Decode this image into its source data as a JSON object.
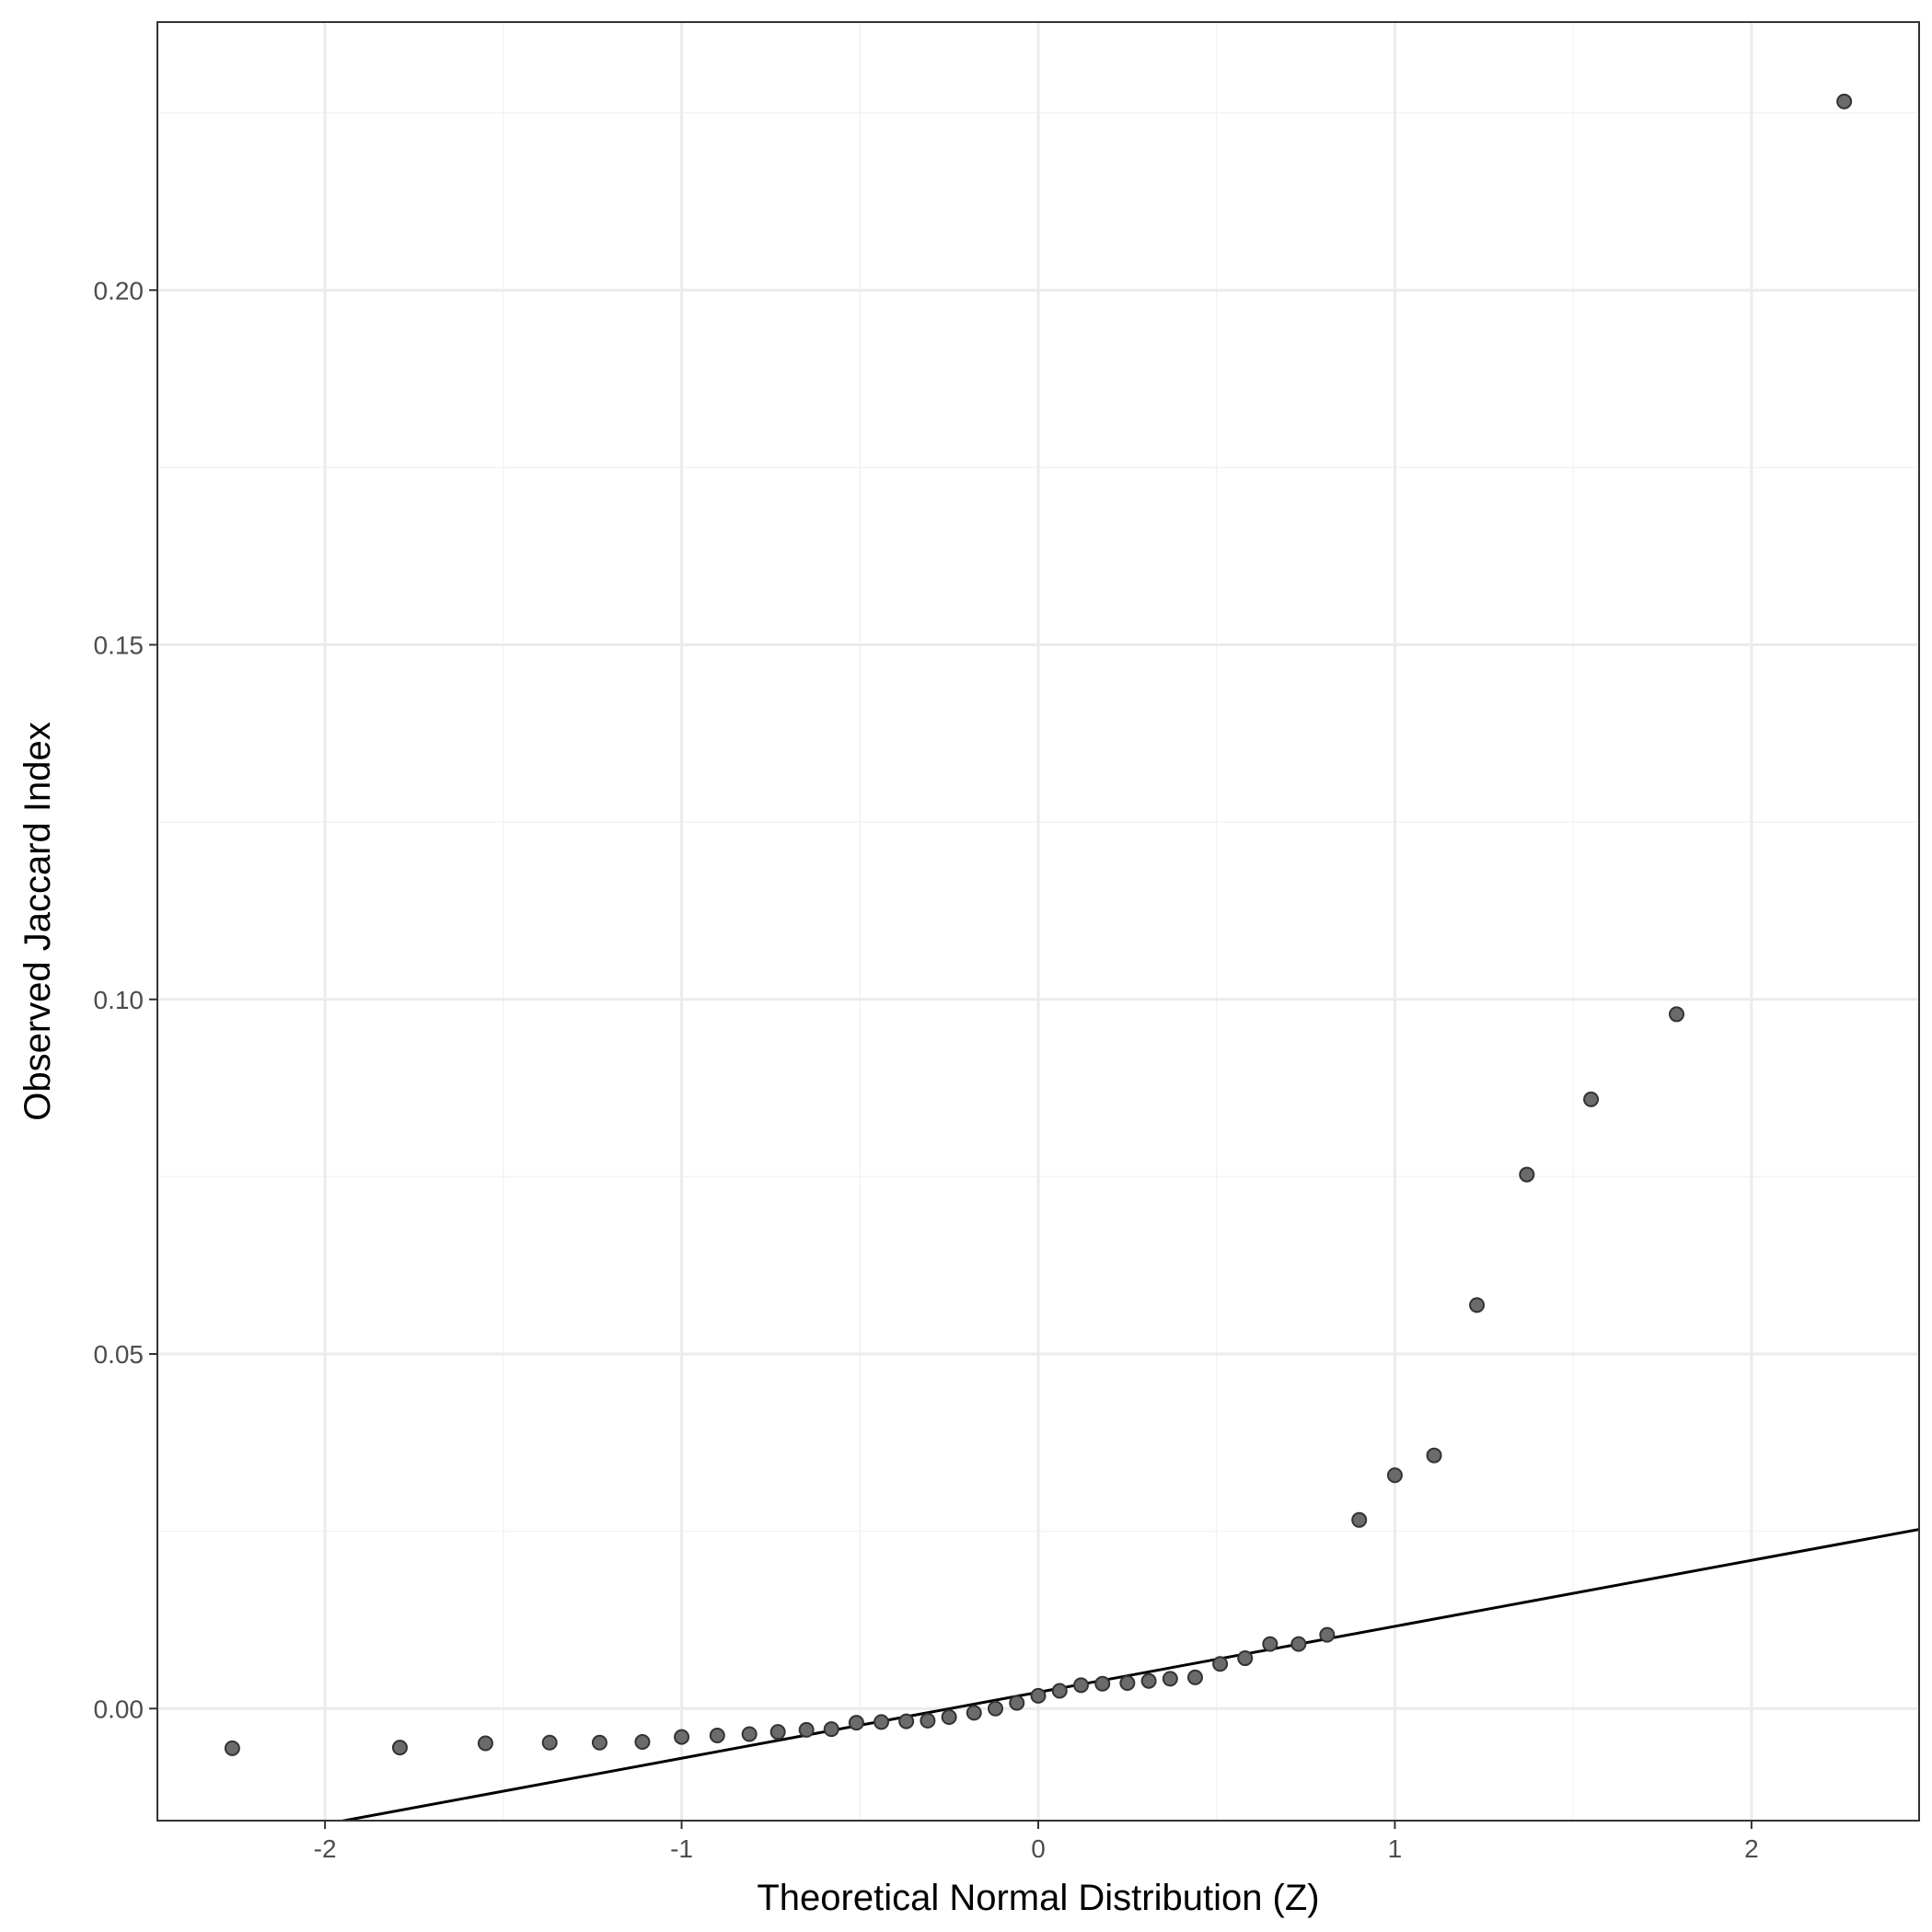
{
  "chart_data": {
    "type": "scatter",
    "title": "",
    "xlabel": "Theoretical Normal Distribution (Z)",
    "ylabel": "Observed Jaccard Index",
    "xlim": [
      -2.47,
      2.47
    ],
    "ylim": [
      -0.0158,
      0.2378
    ],
    "x_ticks": [
      -2,
      -1,
      0,
      1,
      2
    ],
    "x_tick_labels": [
      "-2",
      "-1",
      "0",
      "1",
      "2"
    ],
    "y_ticks": [
      0.0,
      0.05,
      0.1,
      0.15,
      0.2
    ],
    "y_tick_labels": [
      "0.00",
      "0.05",
      "0.10",
      "0.15",
      "0.20"
    ],
    "grid": true,
    "points": [
      {
        "x": -2.26,
        "y": -0.0056
      },
      {
        "x": -1.79,
        "y": -0.0055
      },
      {
        "x": -1.55,
        "y": -0.0049
      },
      {
        "x": -1.37,
        "y": -0.0048
      },
      {
        "x": -1.23,
        "y": -0.0048
      },
      {
        "x": -1.11,
        "y": -0.0047
      },
      {
        "x": -1.0,
        "y": -0.004
      },
      {
        "x": -0.9,
        "y": -0.0038
      },
      {
        "x": -0.81,
        "y": -0.0036
      },
      {
        "x": -0.73,
        "y": -0.0033
      },
      {
        "x": -0.65,
        "y": -0.003
      },
      {
        "x": -0.58,
        "y": -0.0029
      },
      {
        "x": -0.51,
        "y": -0.002
      },
      {
        "x": -0.44,
        "y": -0.0019
      },
      {
        "x": -0.37,
        "y": -0.0018
      },
      {
        "x": -0.31,
        "y": -0.0017
      },
      {
        "x": -0.25,
        "y": -0.0012
      },
      {
        "x": -0.18,
        "y": -0.0006
      },
      {
        "x": -0.12,
        "y": 0.0
      },
      {
        "x": -0.06,
        "y": 0.0008
      },
      {
        "x": 0.0,
        "y": 0.0018
      },
      {
        "x": 0.06,
        "y": 0.0025
      },
      {
        "x": 0.12,
        "y": 0.0033
      },
      {
        "x": 0.18,
        "y": 0.0035
      },
      {
        "x": 0.25,
        "y": 0.0036
      },
      {
        "x": 0.31,
        "y": 0.0039
      },
      {
        "x": 0.37,
        "y": 0.0042
      },
      {
        "x": 0.44,
        "y": 0.0044
      },
      {
        "x": 0.51,
        "y": 0.0063
      },
      {
        "x": 0.58,
        "y": 0.0071
      },
      {
        "x": 0.65,
        "y": 0.0091
      },
      {
        "x": 0.73,
        "y": 0.0091
      },
      {
        "x": 0.81,
        "y": 0.0104
      },
      {
        "x": 0.9,
        "y": 0.0266
      },
      {
        "x": 1.0,
        "y": 0.0329
      },
      {
        "x": 1.11,
        "y": 0.0357
      },
      {
        "x": 1.23,
        "y": 0.0569
      },
      {
        "x": 1.37,
        "y": 0.0753
      },
      {
        "x": 1.55,
        "y": 0.0859
      },
      {
        "x": 1.79,
        "y": 0.0979
      },
      {
        "x": 2.26,
        "y": 0.2266
      }
    ],
    "reference_line": {
      "intercept": 0.0023,
      "slope": 0.0093
    }
  },
  "colors": {
    "point_fill": "#6b6b6b",
    "point_stroke": "#333333",
    "line": "#000000",
    "grid_major": "#ebebeb",
    "grid_minor": "#f3f3f3",
    "panel_border": "#333333"
  }
}
